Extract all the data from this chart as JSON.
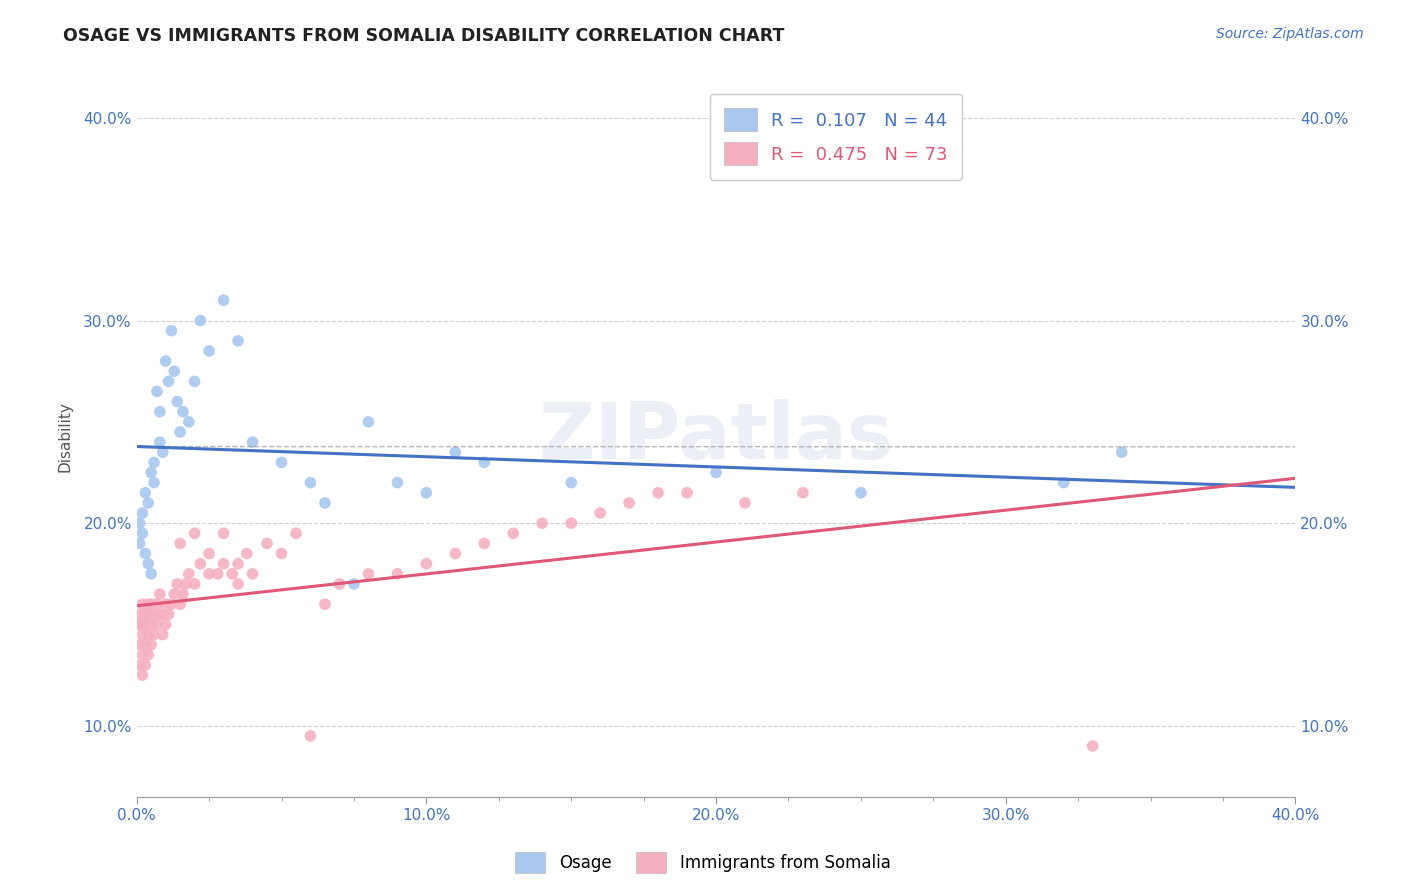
{
  "title": "OSAGE VS IMMIGRANTS FROM SOMALIA DISABILITY CORRELATION CHART",
  "source": "Source: ZipAtlas.com",
  "ylabel": "Disability",
  "xlim": [
    0.0,
    0.4
  ],
  "ylim": [
    0.065,
    0.42
  ],
  "xtick_labels": [
    "0.0%",
    "",
    "",
    "",
    "10.0%",
    "",
    "",
    "",
    "20.0%",
    "",
    "",
    "",
    "30.0%",
    "",
    "",
    "",
    "40.0%"
  ],
  "xtick_vals": [
    0.0,
    0.025,
    0.05,
    0.075,
    0.1,
    0.125,
    0.15,
    0.175,
    0.2,
    0.225,
    0.25,
    0.275,
    0.3,
    0.325,
    0.35,
    0.375,
    0.4
  ],
  "ytick_labels": [
    "10.0%",
    "20.0%",
    "30.0%",
    "40.0%"
  ],
  "ytick_vals": [
    0.1,
    0.2,
    0.3,
    0.4
  ],
  "series1_color": "#a8c8f0",
  "series2_color": "#f5b0c0",
  "line1_color": "#4472c4",
  "line2_color": "#e05878",
  "R1": 0.107,
  "N1": 44,
  "R2": 0.475,
  "N2": 73,
  "background_color": "#ffffff",
  "grid_color": "#d0d0d0",
  "osage_x": [
    0.001,
    0.001,
    0.002,
    0.002,
    0.003,
    0.003,
    0.004,
    0.004,
    0.005,
    0.005,
    0.006,
    0.006,
    0.007,
    0.008,
    0.008,
    0.009,
    0.01,
    0.011,
    0.012,
    0.013,
    0.014,
    0.015,
    0.016,
    0.018,
    0.02,
    0.022,
    0.025,
    0.03,
    0.035,
    0.04,
    0.05,
    0.06,
    0.065,
    0.075,
    0.08,
    0.09,
    0.1,
    0.11,
    0.12,
    0.15,
    0.2,
    0.25,
    0.32,
    0.34
  ],
  "osage_y": [
    0.2,
    0.19,
    0.195,
    0.205,
    0.185,
    0.215,
    0.18,
    0.21,
    0.175,
    0.225,
    0.22,
    0.23,
    0.265,
    0.24,
    0.255,
    0.235,
    0.28,
    0.27,
    0.295,
    0.275,
    0.26,
    0.245,
    0.255,
    0.25,
    0.27,
    0.3,
    0.285,
    0.31,
    0.29,
    0.24,
    0.23,
    0.22,
    0.21,
    0.17,
    0.25,
    0.22,
    0.215,
    0.235,
    0.23,
    0.22,
    0.225,
    0.215,
    0.22,
    0.235
  ],
  "somalia_x": [
    0.001,
    0.001,
    0.001,
    0.001,
    0.002,
    0.002,
    0.002,
    0.002,
    0.002,
    0.003,
    0.003,
    0.003,
    0.003,
    0.004,
    0.004,
    0.004,
    0.004,
    0.005,
    0.005,
    0.005,
    0.006,
    0.006,
    0.007,
    0.007,
    0.008,
    0.008,
    0.009,
    0.009,
    0.01,
    0.01,
    0.011,
    0.012,
    0.013,
    0.014,
    0.015,
    0.016,
    0.017,
    0.018,
    0.02,
    0.022,
    0.025,
    0.028,
    0.03,
    0.033,
    0.035,
    0.038,
    0.04,
    0.045,
    0.05,
    0.055,
    0.06,
    0.065,
    0.07,
    0.08,
    0.09,
    0.1,
    0.11,
    0.12,
    0.13,
    0.14,
    0.15,
    0.16,
    0.17,
    0.19,
    0.21,
    0.23,
    0.33,
    0.18,
    0.015,
    0.025,
    0.035,
    0.02,
    0.03
  ],
  "somalia_y": [
    0.13,
    0.14,
    0.15,
    0.155,
    0.125,
    0.135,
    0.145,
    0.15,
    0.16,
    0.13,
    0.14,
    0.15,
    0.155,
    0.135,
    0.145,
    0.155,
    0.16,
    0.14,
    0.15,
    0.16,
    0.145,
    0.155,
    0.15,
    0.16,
    0.155,
    0.165,
    0.145,
    0.155,
    0.15,
    0.16,
    0.155,
    0.16,
    0.165,
    0.17,
    0.16,
    0.165,
    0.17,
    0.175,
    0.17,
    0.18,
    0.185,
    0.175,
    0.18,
    0.175,
    0.18,
    0.185,
    0.175,
    0.19,
    0.185,
    0.195,
    0.095,
    0.16,
    0.17,
    0.175,
    0.175,
    0.18,
    0.185,
    0.19,
    0.195,
    0.2,
    0.2,
    0.205,
    0.21,
    0.215,
    0.21,
    0.215,
    0.09,
    0.215,
    0.19,
    0.175,
    0.17,
    0.195,
    0.195
  ]
}
